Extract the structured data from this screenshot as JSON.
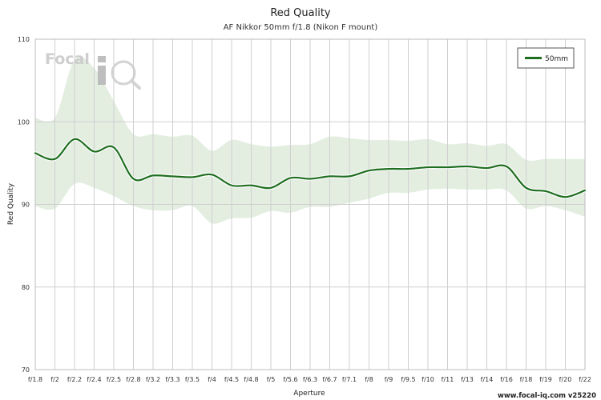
{
  "chart_data": {
    "type": "line",
    "title": "Red Quality",
    "subtitle": "AF Nikkor 50mm f/1.8 (Nikon F mount)",
    "xlabel": "Aperture",
    "ylabel": "Red Quality",
    "ylim": [
      70,
      110
    ],
    "yticks": [
      70,
      80,
      90,
      100,
      110
    ],
    "categories": [
      "f/1.8",
      "f/2",
      "f/2.2",
      "f/2.4",
      "f/2.5",
      "f/2.8",
      "f/3.2",
      "f/3.3",
      "f/3.5",
      "f/4",
      "f/4.5",
      "f/4.8",
      "f/5",
      "f/5.6",
      "f/6.3",
      "f/6.7",
      "f/7.1",
      "f/8",
      "f/9",
      "f/9.5",
      "f/10",
      "f/11",
      "f/13",
      "f/14",
      "f/16",
      "f/18",
      "f/19",
      "f/20",
      "f/22"
    ],
    "grid": true,
    "legend_position": "top-right",
    "series": [
      {
        "name": "50mm",
        "color": "#1f6e1f",
        "values": [
          96.2,
          95.5,
          97.9,
          96.4,
          96.9,
          93.1,
          93.5,
          93.4,
          93.3,
          93.6,
          92.3,
          92.3,
          92.0,
          93.2,
          93.1,
          93.4,
          93.4,
          94.1,
          94.3,
          94.3,
          94.5,
          94.5,
          94.6,
          94.4,
          94.6,
          92.0,
          91.6,
          90.9,
          91.7
        ],
        "band_upper": [
          100.5,
          100.5,
          107.5,
          106.5,
          102.5,
          98.5,
          98.5,
          98.2,
          98.3,
          96.5,
          97.8,
          97.3,
          97.0,
          97.2,
          97.3,
          98.2,
          98.0,
          97.8,
          97.8,
          97.7,
          97.9,
          97.3,
          97.4,
          97.1,
          97.3,
          95.4,
          95.5,
          95.5,
          95.5
        ],
        "band_lower": [
          89.8,
          89.5,
          92.5,
          92.0,
          91.0,
          89.8,
          89.3,
          89.3,
          89.8,
          87.7,
          88.3,
          88.4,
          89.2,
          89.0,
          89.7,
          89.7,
          90.2,
          90.7,
          91.4,
          91.4,
          91.8,
          91.9,
          91.8,
          91.8,
          91.7,
          89.5,
          89.8,
          89.3,
          88.5
        ],
        "band_color": "#e3eee1"
      }
    ]
  },
  "branding": {
    "logo_text_1": "Focal",
    "logo_text_2": "iQ",
    "footer": "www.focal-iq.com  v25220"
  }
}
